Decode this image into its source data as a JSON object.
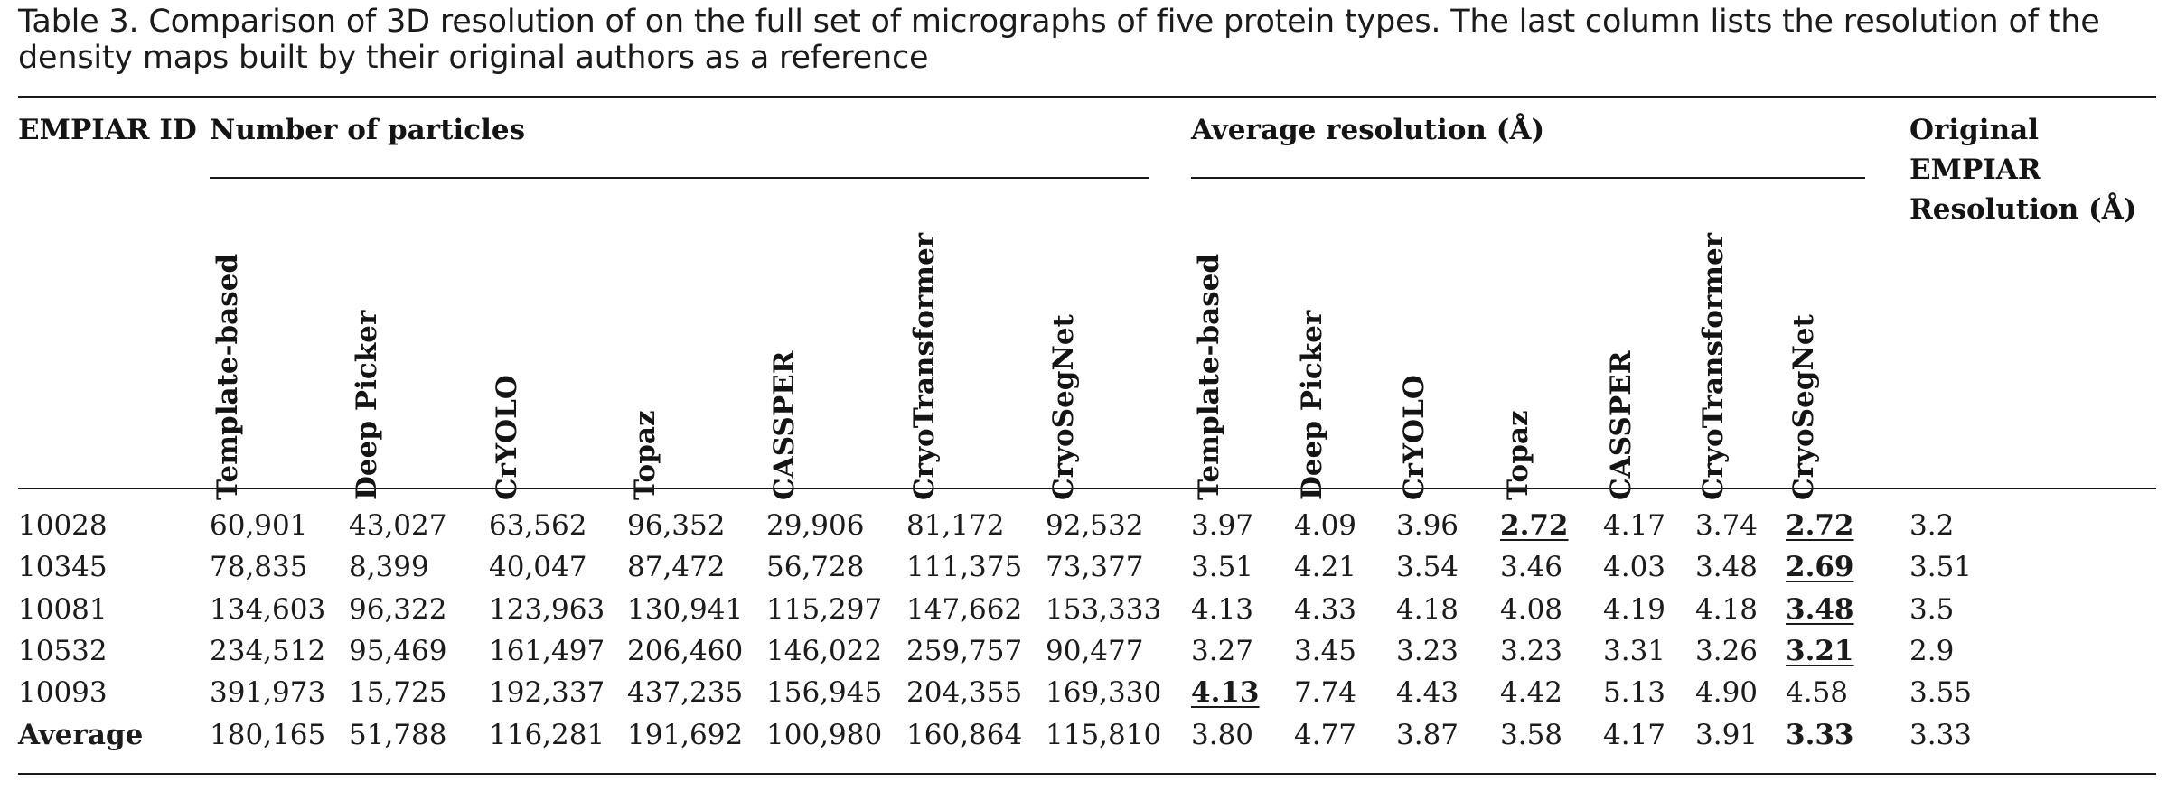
{
  "caption": "Table 3. Comparison of 3D resolution of on the full set of micrographs of five protein types. The last column lists the resolution of the density maps built by their original authors as a reference",
  "table": {
    "id_header": "EMPIAR ID",
    "group_particles": "Number of particles",
    "group_resolution": "Average resolution (Å)",
    "original_header": "Original EMPIAR Resolution (Å)",
    "subcolumns": [
      "Template-based",
      "Deep Picker",
      "CrYOLO",
      "Topaz",
      "CASSPER",
      "CryoTransformer",
      "CryoSegNet"
    ],
    "rows": [
      {
        "id": "10028",
        "particles": [
          "60,901",
          "43,027",
          "63,562",
          "96,352",
          "29,906",
          "81,172",
          "92,532"
        ],
        "resolution": [
          "3.97",
          "4.09",
          "3.96",
          "2.72",
          "4.17",
          "3.74",
          "2.72"
        ],
        "original": "3.2"
      },
      {
        "id": "10345",
        "particles": [
          "78,835",
          "8,399",
          "40,047",
          "87,472",
          "56,728",
          "111,375",
          "73,377"
        ],
        "resolution": [
          "3.51",
          "4.21",
          "3.54",
          "3.46",
          "4.03",
          "3.48",
          "2.69"
        ],
        "original": "3.51"
      },
      {
        "id": "10081",
        "particles": [
          "134,603",
          "96,322",
          "123,963",
          "130,941",
          "115,297",
          "147,662",
          "153,333"
        ],
        "resolution": [
          "4.13",
          "4.33",
          "4.18",
          "4.08",
          "4.19",
          "4.18",
          "3.48"
        ],
        "original": "3.5"
      },
      {
        "id": "10532",
        "particles": [
          "234,512",
          "95,469",
          "161,497",
          "206,460",
          "146,022",
          "259,757",
          "90,477"
        ],
        "resolution": [
          "3.27",
          "3.45",
          "3.23",
          "3.23",
          "3.31",
          "3.26",
          "3.21"
        ],
        "original": "2.9"
      },
      {
        "id": "10093",
        "particles": [
          "391,973",
          "15,725",
          "192,337",
          "437,235",
          "156,945",
          "204,355",
          "169,330"
        ],
        "resolution": [
          "4.13",
          "7.74",
          "4.43",
          "4.42",
          "5.13",
          "4.90",
          "4.58"
        ],
        "original": "3.55"
      },
      {
        "id": "Average",
        "particles": [
          "180,165",
          "51,788",
          "116,281",
          "191,692",
          "100,980",
          "160,864",
          "115,810"
        ],
        "resolution": [
          "3.80",
          "4.77",
          "3.87",
          "3.58",
          "4.17",
          "3.91",
          "3.33"
        ],
        "original": "3.33"
      }
    ],
    "highlighted_resolution_cells": [
      {
        "row": 0,
        "col": 3,
        "style": "bold-underline"
      },
      {
        "row": 0,
        "col": 6,
        "style": "bold-underline"
      },
      {
        "row": 1,
        "col": 6,
        "style": "bold-underline"
      },
      {
        "row": 2,
        "col": 6,
        "style": "bold-underline"
      },
      {
        "row": 3,
        "col": 6,
        "style": "bold-underline"
      },
      {
        "row": 4,
        "col": 0,
        "style": "bold-underline"
      },
      {
        "row": 5,
        "col": 6,
        "style": "bold"
      }
    ],
    "bold_row_labels": [
      5
    ]
  }
}
